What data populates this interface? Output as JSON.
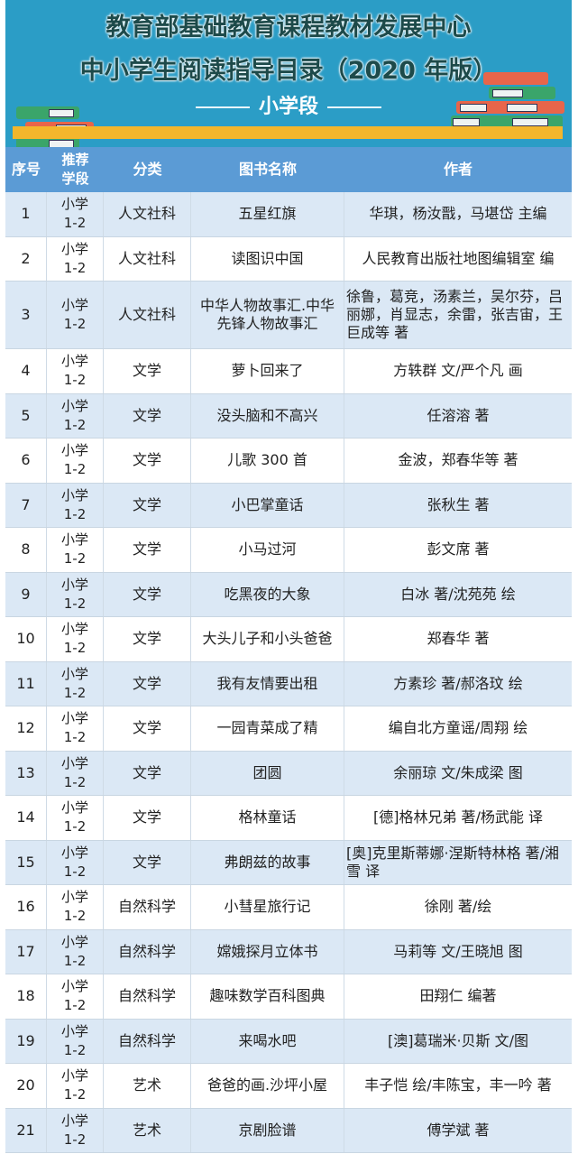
{
  "banner": {
    "title_line1": "教育部基础教育课程教材发展中心",
    "title_line2": "中小学生阅读指导目录（2020 年版）",
    "section": "小学段"
  },
  "colors": {
    "banner": "#2b9dc6",
    "header": "#5b9bd5",
    "row_alt": "#dbe8f5",
    "shelf": "#f3b62c"
  },
  "table": {
    "columns": [
      "序号",
      "推荐学段",
      "分类",
      "图书名称",
      "作者"
    ],
    "rows": [
      [
        "1",
        "小学 1-2",
        "人文社科",
        "五星红旗",
        "华琪，杨汝戬，马堪岱 主编"
      ],
      [
        "2",
        "小学 1-2",
        "人文社科",
        "读图识中国",
        "人民教育出版社地图编辑室 编"
      ],
      [
        "3",
        "小学 1-2",
        "人文社科",
        "中华人物故事汇.中华先锋人物故事汇",
        "徐鲁，葛竞，汤素兰，吴尔芬，吕丽娜，肖显志，余雷，张吉宙，王巨成等 著"
      ],
      [
        "4",
        "小学 1-2",
        "文学",
        "萝卜回来了",
        "方轶群 文/严个凡 画"
      ],
      [
        "5",
        "小学 1-2",
        "文学",
        "没头脑和不高兴",
        "任溶溶 著"
      ],
      [
        "6",
        "小学 1-2",
        "文学",
        "儿歌 300 首",
        "金波，郑春华等 著"
      ],
      [
        "7",
        "小学 1-2",
        "文学",
        "小巴掌童话",
        "张秋生 著"
      ],
      [
        "8",
        "小学 1-2",
        "文学",
        "小马过河",
        "彭文席 著"
      ],
      [
        "9",
        "小学 1-2",
        "文学",
        "吃黑夜的大象",
        "白冰 著/沈苑苑 绘"
      ],
      [
        "10",
        "小学 1-2",
        "文学",
        "大头儿子和小头爸爸",
        "郑春华 著"
      ],
      [
        "11",
        "小学 1-2",
        "文学",
        "我有友情要出租",
        "方素珍 著/郝洛玟 绘"
      ],
      [
        "12",
        "小学 1-2",
        "文学",
        "一园青菜成了精",
        "编自北方童谣/周翔 绘"
      ],
      [
        "13",
        "小学 1-2",
        "文学",
        "团圆",
        "余丽琼 文/朱成梁 图"
      ],
      [
        "14",
        "小学 1-2",
        "文学",
        "格林童话",
        "[德]格林兄弟 著/杨武能 译"
      ],
      [
        "15",
        "小学 1-2",
        "文学",
        "弗朗兹的故事",
        "[奥]克里斯蒂娜·涅斯特林格 著/湘雪 译"
      ],
      [
        "16",
        "小学 1-2",
        "自然科学",
        "小彗星旅行记",
        "徐刚 著/绘"
      ],
      [
        "17",
        "小学 1-2",
        "自然科学",
        "嫦娥探月立体书",
        "马莉等 文/王晓旭 图"
      ],
      [
        "18",
        "小学 1-2",
        "自然科学",
        "趣味数学百科图典",
        "田翔仁 编著"
      ],
      [
        "19",
        "小学 1-2",
        "自然科学",
        "来喝水吧",
        "[澳]葛瑞米·贝斯 文/图"
      ],
      [
        "20",
        "小学 1-2",
        "艺术",
        "爸爸的画.沙坪小屋",
        "丰子恺 绘/丰陈宝，丰一吟 著"
      ],
      [
        "21",
        "小学 1-2",
        "艺术",
        "京剧脸谱",
        "傅学斌 著"
      ]
    ]
  }
}
